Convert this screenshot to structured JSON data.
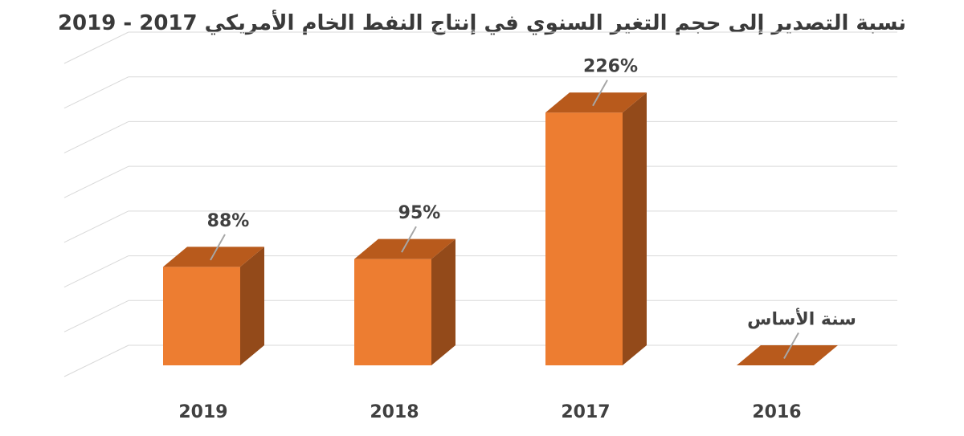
{
  "chart_data": {
    "type": "bar",
    "title": "نسبة التصدير إلى حجم التغير السنوي في إنتاج النفط الخام الأمريكي 2017 - 2019",
    "categories": [
      "2019",
      "2018",
      "2017",
      "2016"
    ],
    "values": [
      88,
      95,
      226,
      0
    ],
    "data_labels": [
      "88%",
      "95%",
      "226%",
      "سنة الأساس"
    ],
    "xlabel": "",
    "ylabel": "",
    "ylim": [
      0,
      280
    ],
    "grid": true,
    "three_d": true,
    "colors": {
      "front": "#ED7D31",
      "top": "#B85A1C",
      "side": "#934A1A",
      "grid": "#D9D9D9",
      "leader": "#A6A6A6"
    }
  }
}
